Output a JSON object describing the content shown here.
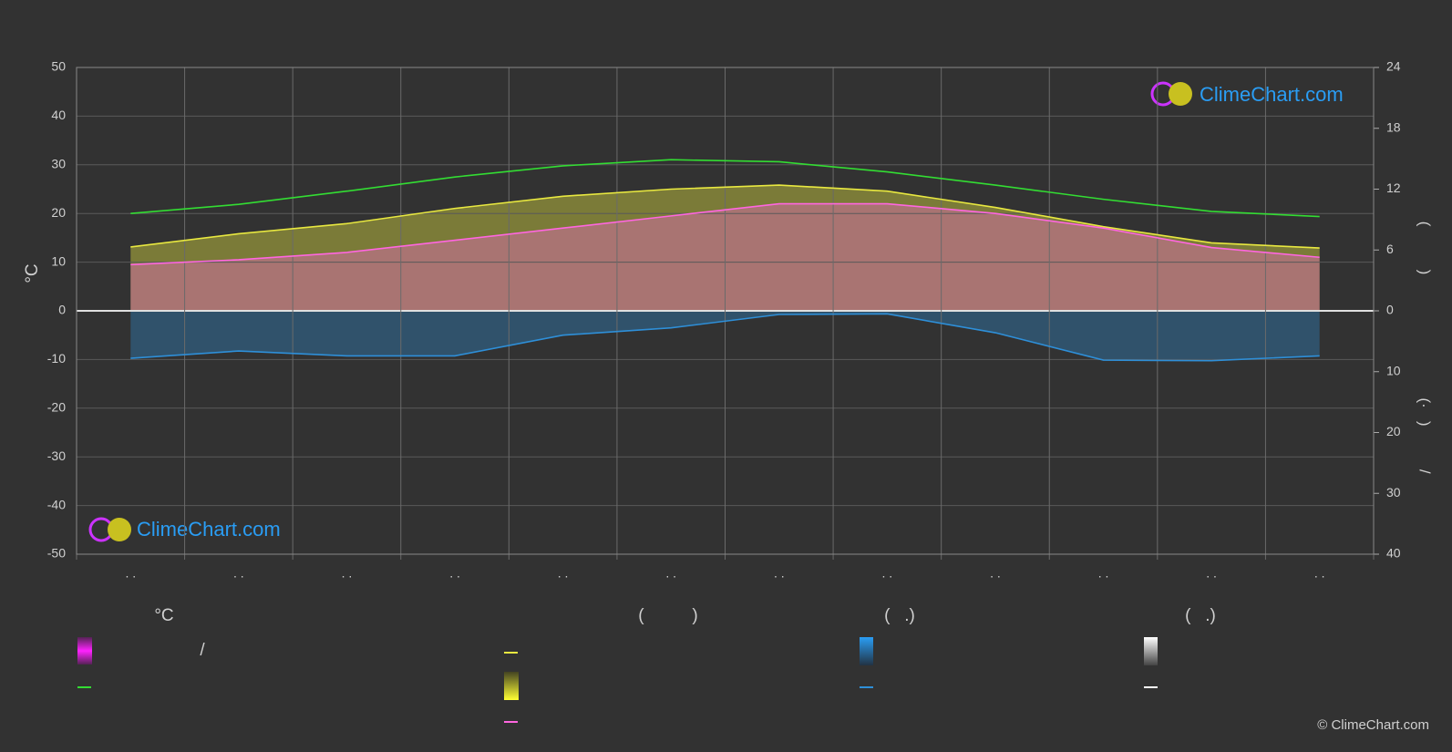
{
  "chart_data": {
    "type": "climate",
    "categories": [
      ". .",
      ". .",
      ". .",
      ". .",
      ". .",
      ". .",
      ". .",
      ". .",
      ". .",
      ". .",
      ". .",
      ". ."
    ],
    "y_label": "°C",
    "y2_label": "(          )",
    "y3_label": "(·   )          /",
    "ylim": [
      -50,
      50
    ],
    "yticks": [
      -50,
      -40,
      -30,
      -20,
      -10,
      0,
      10,
      20,
      30,
      40,
      50
    ],
    "y2lim": [
      0,
      24
    ],
    "y2ticks": [
      0,
      6,
      12,
      18,
      24
    ],
    "y3lim": [
      0,
      40
    ],
    "y3ticks": [
      10,
      20,
      30,
      40
    ],
    "grid": true,
    "series": [
      {
        "color": "#33dd33",
        "axis": "y2",
        "values": [
          9.6,
          10.5,
          11.8,
          13.2,
          14.3,
          14.9,
          14.7,
          13.7,
          12.4,
          11.0,
          9.8,
          9.3
        ]
      },
      {
        "color": "#e8e840",
        "axis": "y2",
        "values": [
          6.3,
          7.6,
          8.6,
          10.1,
          11.3,
          12.0,
          12.4,
          11.8,
          10.2,
          8.3,
          6.7,
          6.2
        ]
      },
      {
        "color": "#ff66e0",
        "axis": "y",
        "values": [
          9.5,
          10.5,
          12.0,
          14.5,
          17.0,
          19.5,
          22.0,
          22.0,
          20.0,
          17.0,
          13.0,
          11.0
        ]
      },
      {
        "color": "#2e8fd8",
        "axis": "y3",
        "values": [
          7.8,
          6.6,
          7.4,
          7.4,
          4.0,
          2.8,
          0.6,
          0.5,
          3.6,
          8.1,
          8.2,
          7.4
        ]
      }
    ],
    "legend_texts": {
      "headers": [
        "°C",
        "(          )",
        "(   .)",
        "(   .)"
      ],
      "slash": "/"
    },
    "logo": "ClimeChart.com",
    "copyright": "© ClimeChart.com"
  }
}
